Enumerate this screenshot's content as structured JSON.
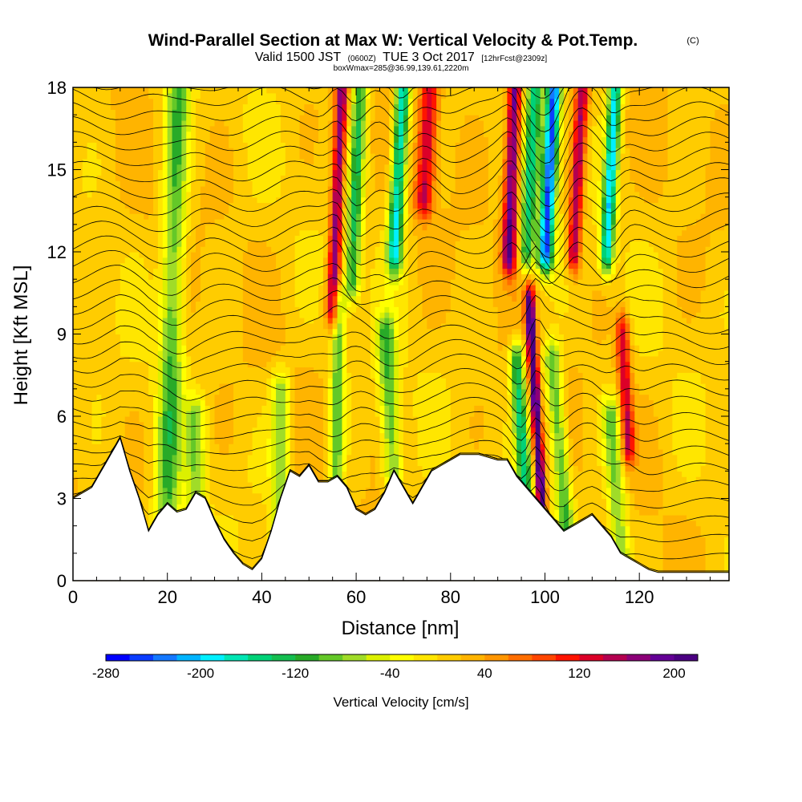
{
  "chart_data": {
    "type": "heatmap",
    "title": "Wind-Parallel Section at Max W: Vertical Velocity & Pot.Temp.",
    "title_tag": "(C)",
    "subtitle": {
      "prefix": "Valid 1500 JST",
      "utc": "(0600Z)",
      "date": "TUE 3 Oct 2017",
      "forecast": "[12hrFcst@2309z]"
    },
    "subsubtitle": "boxWmax=285@36.99,139.61,2220m",
    "xlabel": "Distance [nm]",
    "ylabel": "Height [Kft MSL]",
    "xlim": [
      0,
      139
    ],
    "ylim": [
      0,
      18
    ],
    "x_ticks": [
      "0",
      "20",
      "40",
      "60",
      "80",
      "100",
      "120"
    ],
    "y_ticks": [
      "0",
      "3",
      "6",
      "9",
      "12",
      "15",
      "18"
    ],
    "x_tick_values": [
      0,
      20,
      40,
      60,
      80,
      100,
      120
    ],
    "y_tick_values": [
      0,
      3,
      6,
      9,
      12,
      15,
      18
    ],
    "colorbar": {
      "label": "Vertical Velocity [cm/s]",
      "min": -280,
      "max": 220,
      "step": 20,
      "tick_labels": [
        "-280",
        "-200",
        "-120",
        "-40",
        "40",
        "120",
        "200"
      ],
      "tick_values": [
        -280,
        -200,
        -120,
        -40,
        40,
        120,
        200
      ],
      "colors": [
        "#0000ff",
        "#0a3cff",
        "#1478ff",
        "#00b4ff",
        "#00f0ff",
        "#00e6b4",
        "#00d278",
        "#14be50",
        "#28aa28",
        "#64c828",
        "#a0dc28",
        "#dcf000",
        "#ffff00",
        "#ffe600",
        "#ffcc00",
        "#ffb400",
        "#ff9600",
        "#ff6e00",
        "#ff4600",
        "#ff1400",
        "#dc0028",
        "#b40050",
        "#8c0078",
        "#640096",
        "#4b0082"
      ]
    },
    "terrain_kft": {
      "x": [
        0,
        4,
        8,
        10,
        12,
        14,
        16,
        18,
        20,
        22,
        24,
        26,
        28,
        30,
        32,
        34,
        36,
        38,
        40,
        42,
        44,
        46,
        48,
        50,
        52,
        54,
        56,
        58,
        60,
        62,
        64,
        66,
        68,
        70,
        72,
        74,
        76,
        78,
        80,
        82,
        84,
        86,
        88,
        90,
        92,
        94,
        96,
        98,
        100,
        102,
        104,
        106,
        108,
        110,
        112,
        114,
        116,
        118,
        120,
        122,
        124,
        126,
        128,
        130,
        132,
        134,
        136,
        139
      ],
      "h": [
        3.0,
        3.4,
        4.6,
        5.2,
        4.0,
        3.0,
        1.8,
        2.4,
        2.8,
        2.5,
        2.6,
        3.2,
        3.0,
        2.2,
        1.5,
        1.0,
        0.6,
        0.4,
        0.8,
        1.8,
        3.0,
        4.0,
        3.8,
        4.2,
        3.6,
        3.6,
        3.8,
        3.4,
        2.6,
        2.4,
        2.6,
        3.2,
        4.0,
        3.4,
        2.8,
        3.4,
        4.0,
        4.2,
        4.4,
        4.6,
        4.6,
        4.6,
        4.5,
        4.4,
        4.4,
        3.8,
        3.4,
        3.0,
        2.6,
        2.2,
        1.8,
        2.0,
        2.2,
        2.4,
        2.0,
        1.6,
        1.0,
        0.8,
        0.6,
        0.4,
        0.3,
        0.3,
        0.3,
        0.3,
        0.3,
        0.3,
        0.3,
        0.3
      ]
    },
    "features_cm_s": [
      {
        "x": 21,
        "y_range": [
          1,
          18
        ],
        "tilt_nm_per_kft": 0.15,
        "width_nm": 2.5,
        "w": -110
      },
      {
        "x": 26,
        "y_range": [
          2,
          6
        ],
        "tilt_nm_per_kft": 0.0,
        "width_nm": 2.0,
        "w": -80
      },
      {
        "x": 44,
        "y_range": [
          1,
          7
        ],
        "tilt_nm_per_kft": 0.0,
        "width_nm": 2.0,
        "w": -90
      },
      {
        "x": 56,
        "y_range": [
          10,
          18
        ],
        "tilt_nm_per_kft": 0.25,
        "width_nm": 1.3,
        "w": 170
      },
      {
        "x": 60,
        "y_range": [
          11,
          18
        ],
        "tilt_nm_per_kft": 0.25,
        "width_nm": 1.6,
        "w": -130
      },
      {
        "x": 56,
        "y_range": [
          3,
          10
        ],
        "tilt_nm_per_kft": 0.1,
        "width_nm": 1.5,
        "w": -110
      },
      {
        "x": 67,
        "y_range": [
          4,
          9
        ],
        "tilt_nm_per_kft": -0.3,
        "width_nm": 2.0,
        "w": -110
      },
      {
        "x": 69,
        "y_range": [
          12,
          18
        ],
        "tilt_nm_per_kft": 0.3,
        "width_nm": 1.6,
        "w": -200
      },
      {
        "x": 75,
        "y_range": [
          14,
          18
        ],
        "tilt_nm_per_kft": 0.3,
        "width_nm": 2.0,
        "w": 130
      },
      {
        "x": 93,
        "y_range": [
          12,
          18
        ],
        "tilt_nm_per_kft": 0.2,
        "width_nm": 1.5,
        "w": 190
      },
      {
        "x": 97,
        "y_range": [
          12,
          18
        ],
        "tilt_nm_per_kft": 0.3,
        "width_nm": 1.6,
        "w": -150
      },
      {
        "x": 101,
        "y_range": [
          12,
          18
        ],
        "tilt_nm_per_kft": 0.3,
        "width_nm": 1.6,
        "w": -260
      },
      {
        "x": 107,
        "y_range": [
          12,
          18
        ],
        "tilt_nm_per_kft": 0.3,
        "width_nm": 1.4,
        "w": 150
      },
      {
        "x": 114,
        "y_range": [
          12,
          18
        ],
        "tilt_nm_per_kft": 0.3,
        "width_nm": 1.4,
        "w": -200
      },
      {
        "x": 98,
        "y_range": [
          3,
          10
        ],
        "tilt_nm_per_kft": -0.35,
        "width_nm": 1.0,
        "w": 220
      },
      {
        "x": 95,
        "y_range": [
          3,
          8
        ],
        "tilt_nm_per_kft": -0.4,
        "width_nm": 1.5,
        "w": -150
      },
      {
        "x": 103,
        "y_range": [
          2,
          8
        ],
        "tilt_nm_per_kft": -0.5,
        "width_nm": 1.8,
        "w": -120
      },
      {
        "x": 117,
        "y_range": [
          5,
          9
        ],
        "tilt_nm_per_kft": -0.3,
        "width_nm": 1.4,
        "w": 130
      },
      {
        "x": 115,
        "y_range": [
          1,
          6
        ],
        "tilt_nm_per_kft": -0.4,
        "width_nm": 2.0,
        "w": -100
      }
    ]
  }
}
